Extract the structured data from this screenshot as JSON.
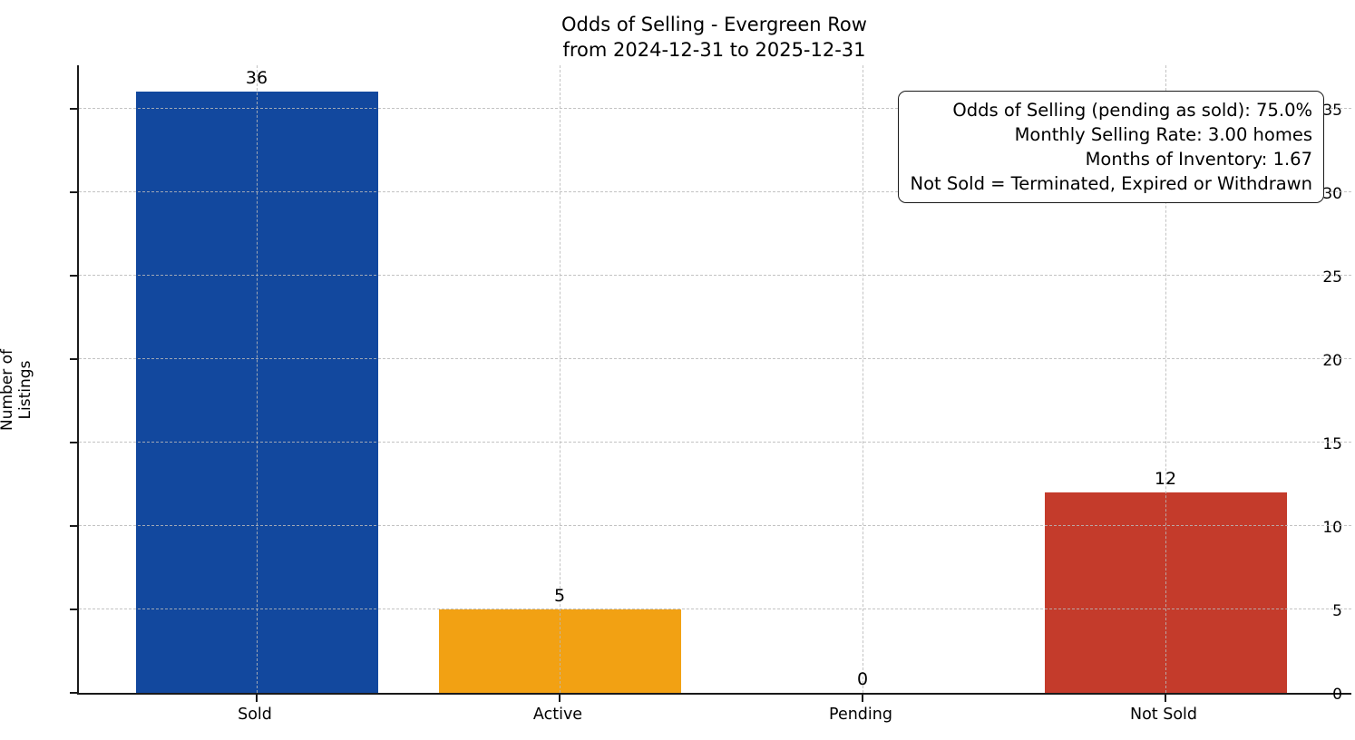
{
  "title": {
    "line1": "Odds of Selling - Evergreen Row",
    "line2": "from 2024-12-31 to 2025-12-31"
  },
  "info_box": {
    "lines": [
      "Odds of Selling (pending as sold): 75.0%",
      "Monthly Selling Rate: 3.00 homes",
      "Months of Inventory: 1.67",
      "Not Sold = Terminated, Expired or Withdrawn"
    ]
  },
  "chart_data": {
    "type": "bar",
    "title": "Odds of Selling - Evergreen Row from 2024-12-31 to 2025-12-31",
    "categories": [
      "Sold",
      "Active",
      "Pending",
      "Not Sold"
    ],
    "values": [
      36,
      5,
      0,
      12
    ],
    "value_labels": [
      "36",
      "5",
      "0",
      "12"
    ],
    "bar_colors": [
      "#12489e",
      "#f2a113",
      null,
      "#c43b2b"
    ],
    "xlabel": "",
    "ylabel": "Number of Listings",
    "yticks": [
      0,
      5,
      10,
      15,
      20,
      25,
      30,
      35
    ],
    "ylim": [
      0,
      37.7
    ],
    "grid": "dashed",
    "legend": "none",
    "axis_color": "#1a1a1a"
  }
}
